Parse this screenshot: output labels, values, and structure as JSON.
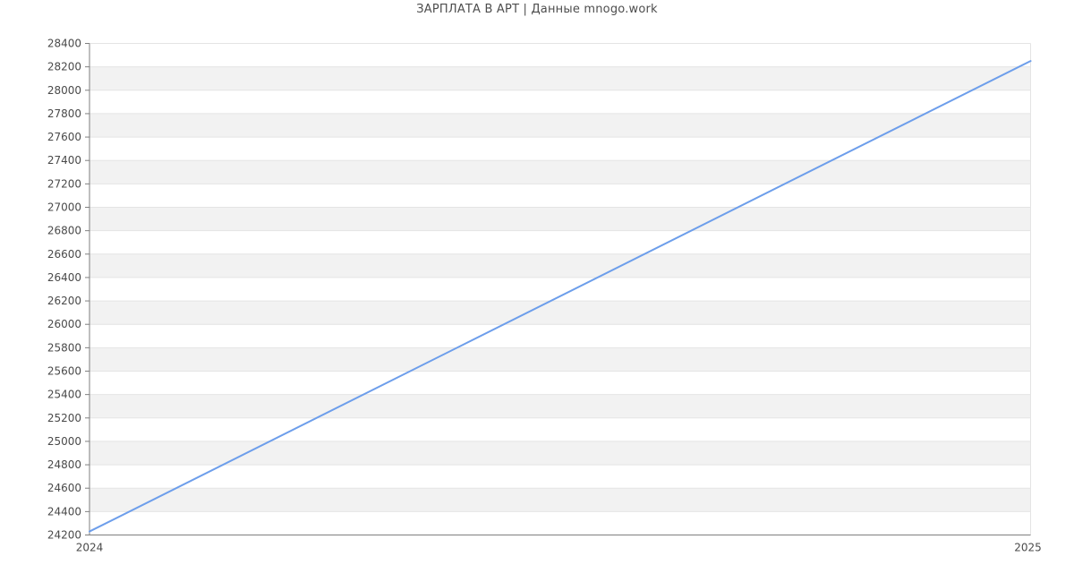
{
  "title": "ЗАРПЛАТА В АРТ | Данные mnogo.work",
  "chart_data": {
    "type": "line",
    "title": "ЗАРПЛАТА В АРТ | Данные mnogo.work",
    "x": [
      2024,
      2025
    ],
    "values": [
      24230,
      28250
    ],
    "xticks": [
      "2024",
      "2025"
    ],
    "ylim": [
      24200,
      28400
    ],
    "ytick_step": 200,
    "xlabel": "",
    "ylabel": "",
    "legend": "none",
    "grid": "horizontal-bands",
    "colors": {
      "line": "#6d9eeb",
      "band": "#f2f2f2",
      "gridline": "#e4e4e4",
      "axis": "#7f7f7f",
      "tick_text": "#4a4a4a",
      "background": "#ffffff"
    }
  }
}
